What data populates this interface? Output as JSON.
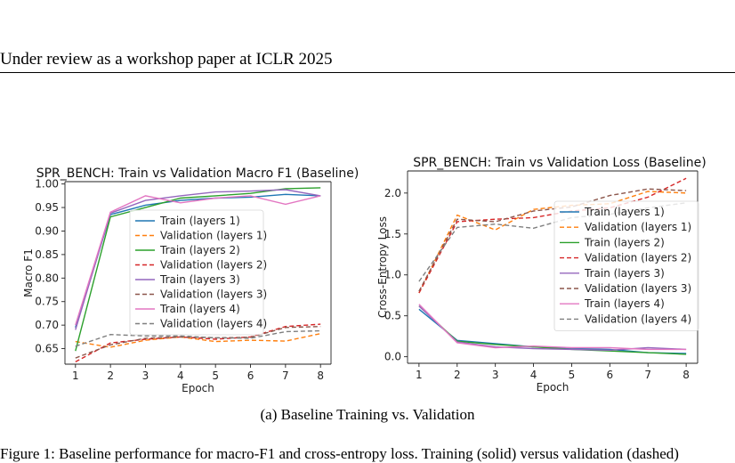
{
  "page": {
    "header": "Under review as a workshop paper at ICLR 2025",
    "caption": "(a)  Baseline Training vs. Validation",
    "body_fragment": "Figure 1:  Baseline performance for macro-F1 and cross-entropy loss. Training (solid) versus validation (dashed)"
  },
  "chart_data": [
    {
      "type": "line",
      "title": "SPR_BENCH: Train vs Validation Macro F1 (Baseline)",
      "xlabel": "Epoch",
      "ylabel": "Macro F1",
      "x": [
        1,
        2,
        3,
        4,
        5,
        6,
        7,
        8
      ],
      "xlim": [
        0.7,
        8.3
      ],
      "ylim": [
        0.617,
        1.005
      ],
      "xticks": [
        "1",
        "2",
        "3",
        "4",
        "5",
        "6",
        "7",
        "8"
      ],
      "yticks": [
        "0.65",
        "0.70",
        "0.75",
        "0.80",
        "0.85",
        "0.90",
        "0.95",
        "1.00"
      ],
      "ytick_values": [
        0.65,
        0.7,
        0.75,
        0.8,
        0.85,
        0.9,
        0.95,
        1.0
      ],
      "grid": false,
      "legend_position": "center",
      "series": [
        {
          "name": "Train (layers 1)",
          "color": "#1f77b4",
          "dash": false,
          "values": [
            0.695,
            0.935,
            0.955,
            0.965,
            0.97,
            0.972,
            0.978,
            0.975
          ]
        },
        {
          "name": "Validation (layers 1)",
          "color": "#ff7f0e",
          "dash": true,
          "values": [
            0.665,
            0.653,
            0.668,
            0.675,
            0.665,
            0.668,
            0.666,
            0.682
          ]
        },
        {
          "name": "Train (layers 2)",
          "color": "#2ca02c",
          "dash": false,
          "values": [
            0.645,
            0.93,
            0.95,
            0.97,
            0.975,
            0.98,
            0.99,
            0.992
          ]
        },
        {
          "name": "Validation (layers 2)",
          "color": "#d62728",
          "dash": true,
          "values": [
            0.622,
            0.662,
            0.67,
            0.675,
            0.67,
            0.675,
            0.697,
            0.702
          ]
        },
        {
          "name": "Train (layers 3)",
          "color": "#9467bd",
          "dash": false,
          "values": [
            0.69,
            0.938,
            0.965,
            0.975,
            0.983,
            0.985,
            0.988,
            0.975
          ]
        },
        {
          "name": "Validation (layers 3)",
          "color": "#8c564b",
          "dash": true,
          "values": [
            0.63,
            0.658,
            0.672,
            0.675,
            0.673,
            0.674,
            0.695,
            0.697
          ]
        },
        {
          "name": "Train (layers 4)",
          "color": "#e377c2",
          "dash": false,
          "values": [
            0.7,
            0.94,
            0.975,
            0.96,
            0.97,
            0.975,
            0.957,
            0.975
          ]
        },
        {
          "name": "Validation (layers 4)",
          "color": "#7f7f7f",
          "dash": true,
          "values": [
            0.655,
            0.68,
            0.677,
            0.677,
            0.673,
            0.672,
            0.686,
            0.688
          ]
        }
      ]
    },
    {
      "type": "line",
      "title": "SPR_BENCH: Train vs Validation Loss (Baseline)",
      "xlabel": "Epoch",
      "ylabel": "Cross-Entropy Loss",
      "x": [
        1,
        2,
        3,
        4,
        5,
        6,
        7,
        8
      ],
      "xlim": [
        0.7,
        8.3
      ],
      "ylim": [
        -0.08,
        2.27
      ],
      "xticks": [
        "1",
        "2",
        "3",
        "4",
        "5",
        "6",
        "7",
        "8"
      ],
      "yticks": [
        "0.0",
        "0.5",
        "1.0",
        "1.5",
        "2.0"
      ],
      "ytick_values": [
        0.0,
        0.5,
        1.0,
        1.5,
        2.0
      ],
      "grid": false,
      "legend_position": "center right",
      "series": [
        {
          "name": "Train (layers 1)",
          "color": "#1f77b4",
          "dash": false,
          "values": [
            0.58,
            0.2,
            0.16,
            0.12,
            0.1,
            0.09,
            0.05,
            0.04
          ]
        },
        {
          "name": "Validation (layers 1)",
          "color": "#ff7f0e",
          "dash": true,
          "values": [
            0.78,
            1.73,
            1.55,
            1.8,
            1.85,
            1.87,
            2.02,
            2.0
          ]
        },
        {
          "name": "Train (layers 2)",
          "color": "#2ca02c",
          "dash": false,
          "values": [
            0.62,
            0.19,
            0.15,
            0.12,
            0.09,
            0.07,
            0.05,
            0.03
          ]
        },
        {
          "name": "Validation (layers 2)",
          "color": "#d62728",
          "dash": true,
          "values": [
            0.78,
            1.65,
            1.68,
            1.7,
            1.78,
            1.82,
            1.95,
            2.18
          ]
        },
        {
          "name": "Train (layers 3)",
          "color": "#9467bd",
          "dash": false,
          "values": [
            0.62,
            0.18,
            0.12,
            0.1,
            0.09,
            0.08,
            0.11,
            0.09
          ]
        },
        {
          "name": "Validation (layers 3)",
          "color": "#8c564b",
          "dash": true,
          "values": [
            0.8,
            1.68,
            1.65,
            1.78,
            1.83,
            1.97,
            2.05,
            2.03
          ]
        },
        {
          "name": "Train (layers 4)",
          "color": "#e377c2",
          "dash": false,
          "values": [
            0.64,
            0.17,
            0.11,
            0.13,
            0.11,
            0.11,
            0.09,
            0.09
          ]
        },
        {
          "name": "Validation (layers 4)",
          "color": "#7f7f7f",
          "dash": true,
          "values": [
            0.92,
            1.58,
            1.62,
            1.57,
            1.7,
            1.74,
            1.82,
            1.88
          ]
        }
      ]
    }
  ]
}
